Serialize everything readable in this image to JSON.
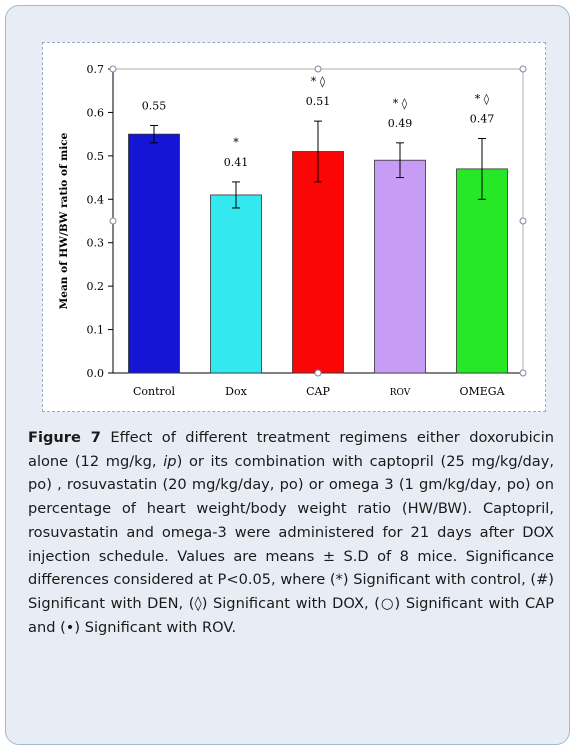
{
  "chart_data": {
    "type": "bar",
    "title": "",
    "xlabel": "",
    "ylabel": "Mean of HW/BW ratio of mice",
    "ylim": [
      0,
      0.7
    ],
    "yticks": [
      "0.0",
      "0.1",
      "0.2",
      "0.3",
      "0.4",
      "0.5",
      "0.6",
      "0.7"
    ],
    "categories": [
      "Control",
      "Dox",
      "CAP",
      "ROV",
      "OMEGA"
    ],
    "values": [
      0.55,
      0.41,
      0.51,
      0.49,
      0.47
    ],
    "errors": [
      0.02,
      0.03,
      0.07,
      0.04,
      0.07
    ],
    "value_labels": [
      "0.55",
      "0.41",
      "0.51",
      "0.49",
      "0.47"
    ],
    "significance": [
      "",
      "*",
      "* ◊",
      "* ◊",
      "* ◊"
    ],
    "colors": [
      "#1515d6",
      "#33e8ee",
      "#fb0606",
      "#c79cf5",
      "#26e826"
    ],
    "grid": false,
    "legend": "none"
  },
  "caption": {
    "label": "Figure 7",
    "segments": [
      " Effect of different treatment regimens either doxorubicin alone (12 mg/kg, ",
      "ip",
      ") or its combination with captopril (25 mg/kg/day, po) , rosuvastatin (20 mg/kg/day, po) or omega 3 (1 gm/kg/day, po) on percentage of heart weight/body weight ratio (HW/BW). Captopril, rosuvastatin and omega-3 were administered for 21 days after DOX injection schedule. Values are means ± S.D of 8 mice. Significance differences considered at P<0.05, where (*) Significant with control, (#) Significant with DEN, (◊) Significant with DOX, (○) Significant with CAP and (•) Significant with ROV."
    ]
  }
}
